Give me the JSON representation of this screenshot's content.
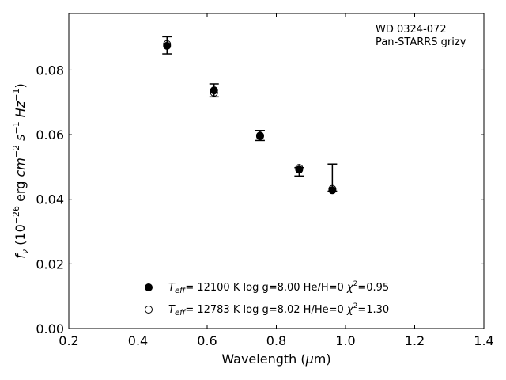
{
  "chart_data": {
    "type": "scatter",
    "annotations": [
      "WD 0324-072",
      "Pan-STARRS grizy"
    ],
    "xlabel": "Wavelength (μm)",
    "ylabel": "f_ν (10^-26 erg cm^-2 s^-1 Hz^-1)",
    "xlim": [
      0.2,
      1.4
    ],
    "ylim": [
      0.0,
      0.0975
    ],
    "x_ticks": [
      0.2,
      0.4,
      0.6,
      0.8,
      1.0,
      1.2,
      1.4
    ],
    "x_tick_labels": [
      "0.2",
      "0.4",
      "0.6",
      "0.8",
      "1.0",
      "1.2",
      "1.4"
    ],
    "y_ticks": [
      0.0,
      0.02,
      0.04,
      0.06,
      0.08
    ],
    "y_tick_labels": [
      "0.00",
      "0.02",
      "0.04",
      "0.06",
      "0.08"
    ],
    "grid": false,
    "legend_position": "bottom-center",
    "observed": {
      "x": [
        0.484,
        0.62,
        0.753,
        0.866,
        0.962
      ],
      "y": [
        0.0875,
        0.0737,
        0.0597,
        0.0492,
        0.043
      ],
      "err_low": [
        0.0025,
        0.002,
        0.0015,
        0.002,
        0.0005
      ],
      "err_high": [
        0.0028,
        0.002,
        0.0016,
        0.0006,
        0.0079
      ]
    },
    "series": [
      {
        "marker": "filled-circle",
        "label": [
          "T",
          "eff",
          "= 12100 K  log g=8.00  He/H=0  ",
          "χ",
          "2",
          "=0.95"
        ],
        "x": [
          0.484,
          0.62,
          0.753,
          0.866,
          0.962
        ],
        "y": [
          0.0875,
          0.0737,
          0.0597,
          0.0492,
          0.0428
        ]
      },
      {
        "marker": "open-circle",
        "label": [
          "T",
          "eff",
          "= 12783 K  log g=8.02  H/He=0  ",
          "χ",
          "2",
          "=1.30"
        ],
        "x": [
          0.484,
          0.62,
          0.753,
          0.866,
          0.962
        ],
        "y": [
          0.088,
          0.073,
          0.0595,
          0.0497,
          0.0432
        ]
      }
    ]
  }
}
